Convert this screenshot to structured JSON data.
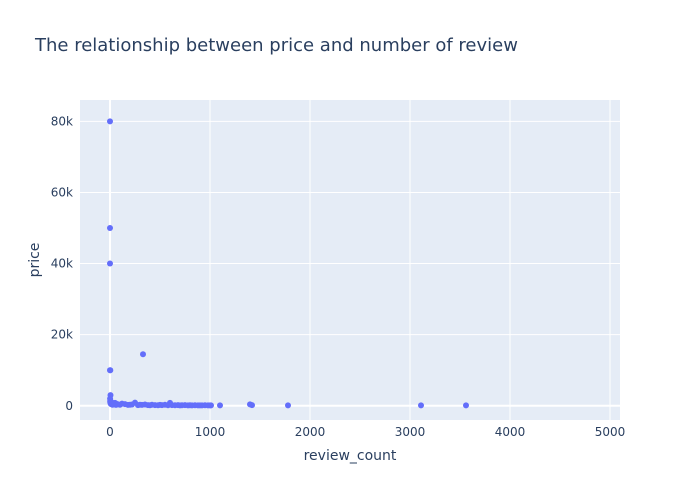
{
  "chart_data": {
    "type": "scatter",
    "title": "The relationship between price and number of review",
    "xlabel": "review_count",
    "ylabel": "price",
    "xlim": [
      -300,
      5100
    ],
    "ylim": [
      -4000,
      86000
    ],
    "x_ticks": [
      0,
      1000,
      2000,
      3000,
      4000,
      5000
    ],
    "x_tick_labels": [
      "0",
      "1000",
      "2000",
      "3000",
      "4000",
      "5000"
    ],
    "y_ticks": [
      0,
      20000,
      40000,
      60000,
      80000
    ],
    "y_tick_labels": [
      "0",
      "20k",
      "40k",
      "60k",
      "80k"
    ],
    "grid": true,
    "marker_color": "#636efa",
    "plot_bgcolor": "#e5ecf6",
    "text_color": "#2a3f5f",
    "series": [
      {
        "x": [
          0,
          0,
          0,
          0,
          3,
          5,
          1,
          3,
          330,
          2,
          4,
          6,
          8,
          10,
          12,
          15,
          20,
          25,
          30,
          40,
          50,
          60,
          70,
          80,
          100,
          120,
          150,
          180,
          200,
          220,
          250,
          280,
          300,
          320,
          350,
          380,
          400,
          420,
          450,
          480,
          500,
          520,
          550,
          580,
          600,
          620,
          650,
          680,
          700,
          720,
          750,
          780,
          800,
          820,
          850,
          880,
          900,
          920,
          950,
          980,
          1000,
          1010,
          1100,
          1400,
          1420,
          1780,
          3110,
          3560
        ],
        "y": [
          80000,
          50000,
          40000,
          10000,
          10000,
          3000,
          2000,
          1500,
          14500,
          1200,
          900,
          700,
          600,
          500,
          800,
          1000,
          400,
          300,
          600,
          350,
          800,
          250,
          500,
          400,
          300,
          600,
          450,
          250,
          300,
          350,
          900,
          200,
          300,
          250,
          350,
          200,
          150,
          300,
          200,
          150,
          250,
          200,
          300,
          150,
          800,
          200,
          150,
          200,
          100,
          150,
          200,
          100,
          150,
          100,
          150,
          100,
          120,
          100,
          150,
          100,
          100,
          100,
          100,
          400,
          200,
          100,
          100,
          100
        ]
      }
    ]
  }
}
